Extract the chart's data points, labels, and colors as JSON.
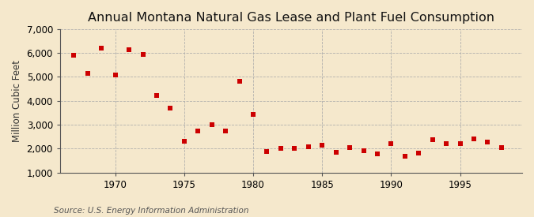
{
  "title": "Annual Montana Natural Gas Lease and Plant Fuel Consumption",
  "ylabel": "Million Cubic Feet",
  "source": "Source: U.S. Energy Information Administration",
  "background_color": "#f5e8cc",
  "plot_background_color": "#f5e8cc",
  "marker_color": "#cc0000",
  "years": [
    1967,
    1968,
    1969,
    1970,
    1971,
    1972,
    1973,
    1974,
    1975,
    1976,
    1977,
    1978,
    1979,
    1980,
    1981,
    1982,
    1983,
    1984,
    1985,
    1986,
    1987,
    1988,
    1989,
    1990,
    1991,
    1992,
    1993,
    1994,
    1995,
    1996,
    1997,
    1998
  ],
  "values": [
    5900,
    5150,
    6200,
    5080,
    6150,
    5950,
    4230,
    3700,
    2300,
    2750,
    3000,
    2750,
    4820,
    3430,
    1870,
    2000,
    2020,
    2080,
    2130,
    1860,
    2040,
    1900,
    1780,
    2220,
    1680,
    1820,
    2390,
    2220,
    2220,
    2400,
    2280,
    2030
  ],
  "ylim": [
    1000,
    7000
  ],
  "yticks": [
    1000,
    2000,
    3000,
    4000,
    5000,
    6000,
    7000
  ],
  "xlim": [
    1966.0,
    1999.5
  ],
  "xticks": [
    1970,
    1975,
    1980,
    1985,
    1990,
    1995
  ],
  "grid_color": "#aaaaaa",
  "title_fontsize": 11.5,
  "label_fontsize": 8.5,
  "tick_fontsize": 8.5,
  "source_fontsize": 7.5
}
